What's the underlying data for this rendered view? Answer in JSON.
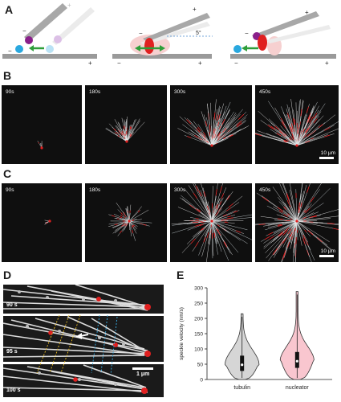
{
  "panels": {
    "a": "A",
    "b": "B",
    "c": "C",
    "d": "D",
    "e": "E"
  },
  "panel_a": {
    "plus_sign": "+",
    "minus_sign": "−",
    "angle_label": "5°"
  },
  "panel_b": {
    "timepoints": [
      "90s",
      "180s",
      "300s",
      "450s"
    ],
    "scalebar": "10 μm"
  },
  "panel_c": {
    "timepoints": [
      "90s",
      "180s",
      "300s",
      "450s"
    ],
    "scalebar": "10 μm"
  },
  "panel_d": {
    "rows": [
      "90 s",
      "95 s",
      "100 s"
    ],
    "scalebar": "1 μm"
  },
  "colors": {
    "microtubule": "#f0f0f0",
    "nucleator": "#e02020",
    "tubulin_violin": "#d6d6d6",
    "nucleator_violin": "#f9c6cf",
    "arrow_green": "#2e9e3a",
    "cyan_blob": "#29a8df",
    "purple_blob": "#8a1f8a"
  },
  "chart_data": {
    "type": "violin",
    "title": "",
    "xlabel": "",
    "ylabel": "speckle velocity (nm/s)",
    "ylim": [
      0,
      300
    ],
    "yticks": [
      0,
      50,
      100,
      150,
      200,
      250,
      300
    ],
    "categories": [
      "tubulin",
      "nucleator"
    ],
    "series": [
      {
        "name": "tubulin",
        "median": 48,
        "q1": 28,
        "q3": 78,
        "min": 0,
        "max": 215,
        "color": "#d6d6d6"
      },
      {
        "name": "nucleator",
        "median": 60,
        "q1": 38,
        "q3": 90,
        "min": 0,
        "max": 288,
        "color": "#f9c6cf"
      }
    ]
  }
}
